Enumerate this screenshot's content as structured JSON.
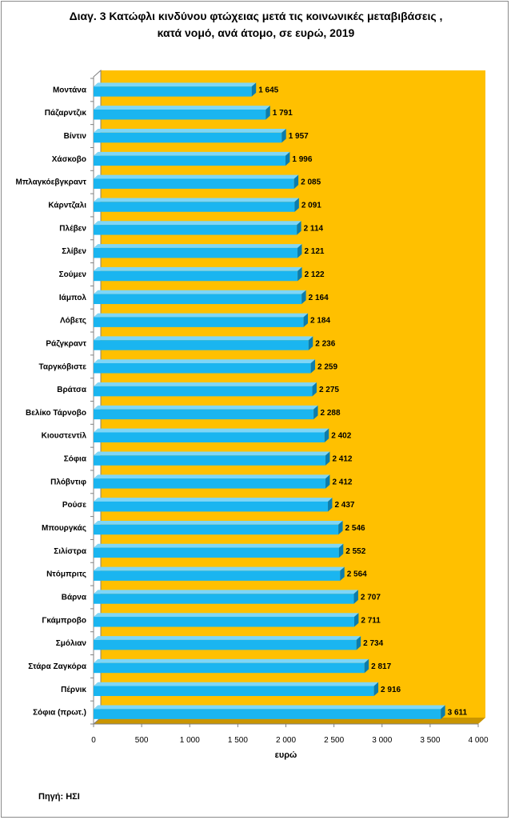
{
  "title": {
    "line1": "Διαγ. 3   Κατώφλι κινδύνου φτώχειας μετά τις κοινωνικές μεταβιβάσεις ,",
    "line2": "κατά νομό, ανά άτομο, σε ευρώ, 2019"
  },
  "source": "Πηγή: ΗΣΙ",
  "colors": {
    "plot_background": "#FFC000",
    "bar_front": "#1AB5F0",
    "bar_top": "#7FD6F7",
    "bar_side": "#0B7CAD",
    "floor": "#C99500",
    "axis": "#808080"
  },
  "chart_data": {
    "type": "bar",
    "orientation": "horizontal",
    "style": "3d",
    "title": "Κατώφλι κινδύνου φτώχειας μετά τις κοινωνικές μεταβιβάσεις , κατά νομό, ανά άτομο, σε ευρώ, 2019",
    "xlabel": "ευρώ",
    "ylabel": "",
    "xlim": [
      0,
      4000
    ],
    "xticks": [
      0,
      500,
      1000,
      1500,
      2000,
      2500,
      3000,
      3500,
      4000
    ],
    "xtick_labels": [
      "0",
      "500",
      "1 000",
      "1 500",
      "2 000",
      "2 500",
      "3 000",
      "3 500",
      "4 000"
    ],
    "categories": [
      "Μοντάνα",
      "Πάζαρντζικ",
      "Βίντιν",
      "Χάσκοβο",
      "Μπλαγκόεβγκραντ",
      "Κάρντζαλι",
      "Πλέβεν",
      "Σλίβεν",
      "Σούμεν",
      "Ιάμπολ",
      "Λόβετς",
      "Ράζγκραντ",
      "Ταργκόβιστε",
      "Βράτσα",
      "Βελίκο Τάρνοβο",
      "Κιουστεντίλ",
      "Σόφια",
      "Πλόβντιφ",
      "Ρούσε",
      "Μπουργκάς",
      "Σιλίστρα",
      "Ντόμπριτς",
      "Βάρνα",
      "Γκάμπροβο",
      "Σμόλιαν",
      "Στάρα Ζαγκόρα",
      "Πέρνικ",
      "Σόφια (πρωτ.)"
    ],
    "values": [
      1645,
      1791,
      1957,
      1996,
      2085,
      2091,
      2114,
      2121,
      2122,
      2164,
      2184,
      2236,
      2259,
      2275,
      2288,
      2402,
      2412,
      2412,
      2437,
      2546,
      2552,
      2564,
      2707,
      2711,
      2734,
      2817,
      2916,
      3611
    ],
    "value_labels": [
      "1 645",
      "1 791",
      "1 957",
      "1 996",
      "2 085",
      "2 091",
      "2 114",
      "2 121",
      "2 122",
      "2 164",
      "2 184",
      "2 236",
      "2 259",
      "2 275",
      "2 288",
      "2 402",
      "2 412",
      "2 412",
      "2 437",
      "2 546",
      "2 552",
      "2 564",
      "2 707",
      "2 711",
      "2 734",
      "2 817",
      "2 916",
      "3 611"
    ],
    "grid": false,
    "legend": "none"
  }
}
